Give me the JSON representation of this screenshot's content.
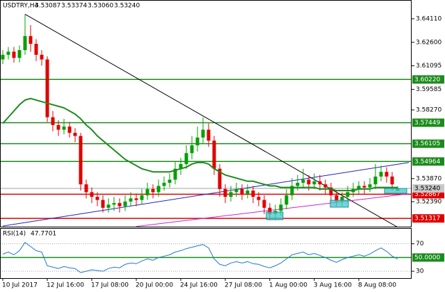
{
  "chart_data": [
    {
      "type": "candlestick",
      "title": "USDTRY,H4",
      "ohlc_labels": [
        "3.53087",
        "3.53374",
        "3.53060",
        "3.53240"
      ],
      "categories": [
        "10 Jul 2017",
        null,
        null,
        null,
        null,
        null,
        null,
        null,
        "12 Jul 16:00",
        null,
        null,
        null,
        null,
        null,
        null,
        null,
        "17 Jul 08:00",
        null,
        null,
        null,
        null,
        null,
        null,
        null,
        "20 Jul 00:00",
        null,
        null,
        null,
        null,
        null,
        null,
        null,
        "24 Jul 16:00",
        null,
        null,
        null,
        null,
        null,
        null,
        null,
        "27 Jul 08:00",
        null,
        null,
        null,
        null,
        null,
        null,
        null,
        "1 Aug 00:00",
        null,
        null,
        null,
        null,
        null,
        null,
        null,
        "3 Aug 16:00",
        null,
        null,
        null,
        null,
        null,
        null,
        null,
        "8 Aug 08:00",
        null,
        null,
        null,
        null,
        null,
        null,
        null
      ],
      "open": [
        3.615,
        3.618,
        3.62,
        3.616,
        3.621,
        3.63,
        3.625,
        3.618,
        3.615,
        3.578,
        3.573,
        3.57,
        3.572,
        3.568,
        3.566,
        3.535,
        3.53,
        3.527,
        3.525,
        3.52,
        3.522,
        3.523,
        3.521,
        3.524,
        3.526,
        3.525,
        3.528,
        3.532,
        3.53,
        3.534,
        3.536,
        3.538,
        3.545,
        3.548,
        3.555,
        3.56,
        3.565,
        3.57,
        3.563,
        3.545,
        3.532,
        3.527,
        3.53,
        3.532,
        3.529,
        3.531,
        3.527,
        3.525,
        3.52,
        3.516,
        3.518,
        3.522,
        3.528,
        3.534,
        3.536,
        3.538,
        3.535,
        3.537,
        3.535,
        3.533,
        3.528,
        3.524,
        3.527,
        3.53,
        3.532,
        3.534,
        3.533,
        3.535,
        3.54,
        3.543,
        3.54,
        3.53087
      ],
      "high": [
        3.621,
        3.623,
        3.623,
        3.624,
        3.644,
        3.637,
        3.628,
        3.621,
        3.617,
        3.582,
        3.576,
        3.577,
        3.575,
        3.571,
        3.568,
        3.538,
        3.533,
        3.53,
        3.528,
        3.526,
        3.527,
        3.526,
        3.528,
        3.53,
        3.529,
        3.532,
        3.536,
        3.535,
        3.538,
        3.54,
        3.542,
        3.55,
        3.552,
        3.56,
        3.566,
        3.572,
        3.578,
        3.574,
        3.566,
        3.548,
        3.535,
        3.534,
        3.536,
        3.535,
        3.535,
        3.534,
        3.53,
        3.528,
        3.523,
        3.522,
        3.526,
        3.532,
        3.539,
        3.541,
        3.545,
        3.541,
        3.542,
        3.541,
        3.538,
        3.536,
        3.531,
        3.53,
        3.534,
        3.536,
        3.537,
        3.537,
        3.539,
        3.548,
        3.547,
        3.546,
        3.543,
        3.53374
      ],
      "low": [
        3.612,
        3.615,
        3.613,
        3.613,
        3.618,
        3.62,
        3.614,
        3.611,
        3.575,
        3.569,
        3.566,
        3.567,
        3.565,
        3.562,
        3.531,
        3.526,
        3.523,
        3.521,
        3.517,
        3.517,
        3.518,
        3.517,
        3.518,
        3.521,
        3.521,
        3.522,
        3.525,
        3.526,
        3.527,
        3.531,
        3.533,
        3.535,
        3.541,
        3.545,
        3.551,
        3.556,
        3.561,
        3.559,
        3.541,
        3.527,
        3.523,
        3.524,
        3.527,
        3.525,
        3.526,
        3.523,
        3.521,
        3.516,
        3.512,
        3.512,
        3.515,
        3.519,
        3.525,
        3.531,
        3.533,
        3.531,
        3.532,
        3.531,
        3.529,
        3.524,
        3.521,
        3.521,
        3.524,
        3.527,
        3.529,
        3.529,
        3.53,
        3.532,
        3.537,
        3.536,
        3.531,
        3.5306
      ],
      "close": [
        3.618,
        3.62,
        3.616,
        3.621,
        3.63,
        3.625,
        3.618,
        3.615,
        3.578,
        3.573,
        3.57,
        3.572,
        3.568,
        3.566,
        3.535,
        3.53,
        3.527,
        3.525,
        3.52,
        3.522,
        3.523,
        3.521,
        3.524,
        3.526,
        3.525,
        3.528,
        3.532,
        3.53,
        3.534,
        3.536,
        3.538,
        3.545,
        3.548,
        3.555,
        3.56,
        3.565,
        3.57,
        3.563,
        3.545,
        3.532,
        3.527,
        3.53,
        3.532,
        3.529,
        3.531,
        3.527,
        3.525,
        3.52,
        3.516,
        3.518,
        3.522,
        3.528,
        3.534,
        3.536,
        3.538,
        3.535,
        3.537,
        3.535,
        3.533,
        3.528,
        3.524,
        3.527,
        3.53,
        3.532,
        3.534,
        3.533,
        3.535,
        3.54,
        3.543,
        3.54,
        3.535,
        3.5324
      ],
      "up_color": "#00a000",
      "down_color": "#e00000",
      "ma": {
        "color": "#1a8c1a",
        "values": [
          3.574,
          3.578,
          3.582,
          3.586,
          3.589,
          3.59,
          3.589,
          3.588,
          3.587,
          3.586,
          3.585,
          3.584,
          3.582,
          3.58,
          3.577,
          3.573,
          3.57,
          3.566,
          3.563,
          3.56,
          3.557,
          3.554,
          3.551,
          3.549,
          3.547,
          3.545,
          3.544,
          3.543,
          3.543,
          3.543,
          3.543,
          3.544,
          3.545,
          3.546,
          3.548,
          3.549,
          3.549,
          3.548,
          3.545,
          3.543,
          3.541,
          3.54,
          3.539,
          3.538,
          3.537,
          3.537,
          3.536,
          3.535,
          3.534,
          3.534,
          3.533,
          3.533,
          3.533,
          3.533,
          3.533,
          3.533,
          3.533,
          3.532,
          3.532,
          3.532,
          3.531,
          3.531,
          3.531,
          3.531,
          3.532,
          3.532,
          3.532,
          3.533,
          3.533,
          3.533,
          3.533,
          3.533
        ]
      },
      "levels": [
        {
          "value": 3.6022,
          "label": "3.60220",
          "color": "#1a8c1a"
        },
        {
          "value": 3.57449,
          "label": "3.57449",
          "color": "#1a8c1a"
        },
        {
          "value": 3.56105,
          "label": "3.56105",
          "color": "#1a8c1a"
        },
        {
          "value": 3.54964,
          "label": "3.54964",
          "color": "#1a8c1a"
        },
        {
          "value": 3.52867,
          "label": "3.52867",
          "color": "#e00000"
        },
        {
          "value": 3.51317,
          "label": "3.51317",
          "color": "#e00000"
        }
      ],
      "last_price": {
        "value": 3.5324,
        "label": "3.53240",
        "color": "#c8c8c8"
      },
      "trendlines": [
        {
          "color": "#000000",
          "start": [
            4,
            3.644
          ],
          "end": [
            71,
            3.5075
          ]
        },
        {
          "color": "#2020c0",
          "start": [
            0,
            3.5083
          ],
          "end": [
            73,
            3.549
          ]
        },
        {
          "color": "#d020d0",
          "start": [
            24,
            3.508
          ],
          "end": [
            73,
            3.529
          ]
        }
      ],
      "ylim": [
        3.5079,
        3.6531
      ],
      "yticks": [
        {
          "value": 3.6411,
          "label": "3.64110"
        },
        {
          "value": 3.626,
          "label": "3.62600"
        },
        3.61095,
        3.59585,
        {
          "value": 3.5827,
          "label": "3.58270"
        },
        {
          "value": 3.5387,
          "label": "3.53870"
        },
        {
          "value": 3.5239,
          "label": "3.52390"
        }
      ]
    },
    {
      "type": "line",
      "title": "RSI(14)",
      "color": "#1e78d0",
      "values": [
        55,
        58,
        54,
        60,
        72,
        66,
        60,
        58,
        38,
        36,
        34,
        37,
        35,
        34,
        28,
        30,
        32,
        31,
        30,
        34,
        36,
        35,
        40,
        42,
        41,
        45,
        48,
        46,
        50,
        52,
        54,
        58,
        60,
        63,
        65,
        67,
        69,
        64,
        48,
        40,
        38,
        42,
        44,
        42,
        44,
        41,
        40,
        37,
        35,
        38,
        42,
        48,
        54,
        56,
        58,
        54,
        56,
        53,
        50,
        46,
        43,
        47,
        50,
        52,
        54,
        52,
        55,
        60,
        64,
        59,
        52,
        47.7701
      ],
      "level": {
        "value": 50,
        "label": "50.0000",
        "color": "#1a8c1a"
      },
      "ylim": [
        20,
        93
      ],
      "yticks": [
        70,
        30
      ]
    }
  ]
}
